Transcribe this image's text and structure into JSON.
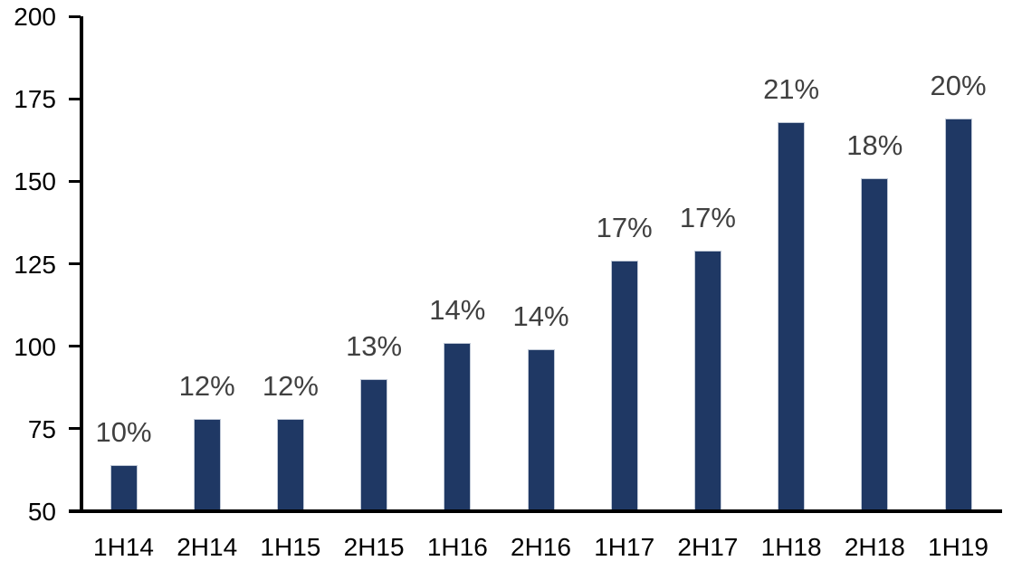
{
  "chart_data": {
    "type": "bar",
    "title": "",
    "xlabel": "",
    "ylabel": "",
    "categories": [
      "1H14",
      "2H14",
      "1H15",
      "2H15",
      "1H16",
      "2H16",
      "1H17",
      "2H17",
      "1H18",
      "2H18",
      "1H19"
    ],
    "values": [
      64,
      78,
      78,
      90,
      101,
      99,
      126,
      129,
      168,
      151,
      169
    ],
    "bar_labels": [
      "10%",
      "12%",
      "12%",
      "13%",
      "14%",
      "14%",
      "17%",
      "17%",
      "21%",
      "18%",
      "20%"
    ],
    "ylim": [
      50,
      200
    ],
    "yticks": [
      50,
      75,
      100,
      125,
      150,
      175,
      200
    ],
    "grid": false,
    "legend": false,
    "colors": {
      "bar_fill": "#1F3864",
      "bar_border": "#BFC8D6",
      "data_label": "#404040",
      "axis": "#000000",
      "tick_label": "#000000",
      "background": "#FFFFFF"
    }
  }
}
